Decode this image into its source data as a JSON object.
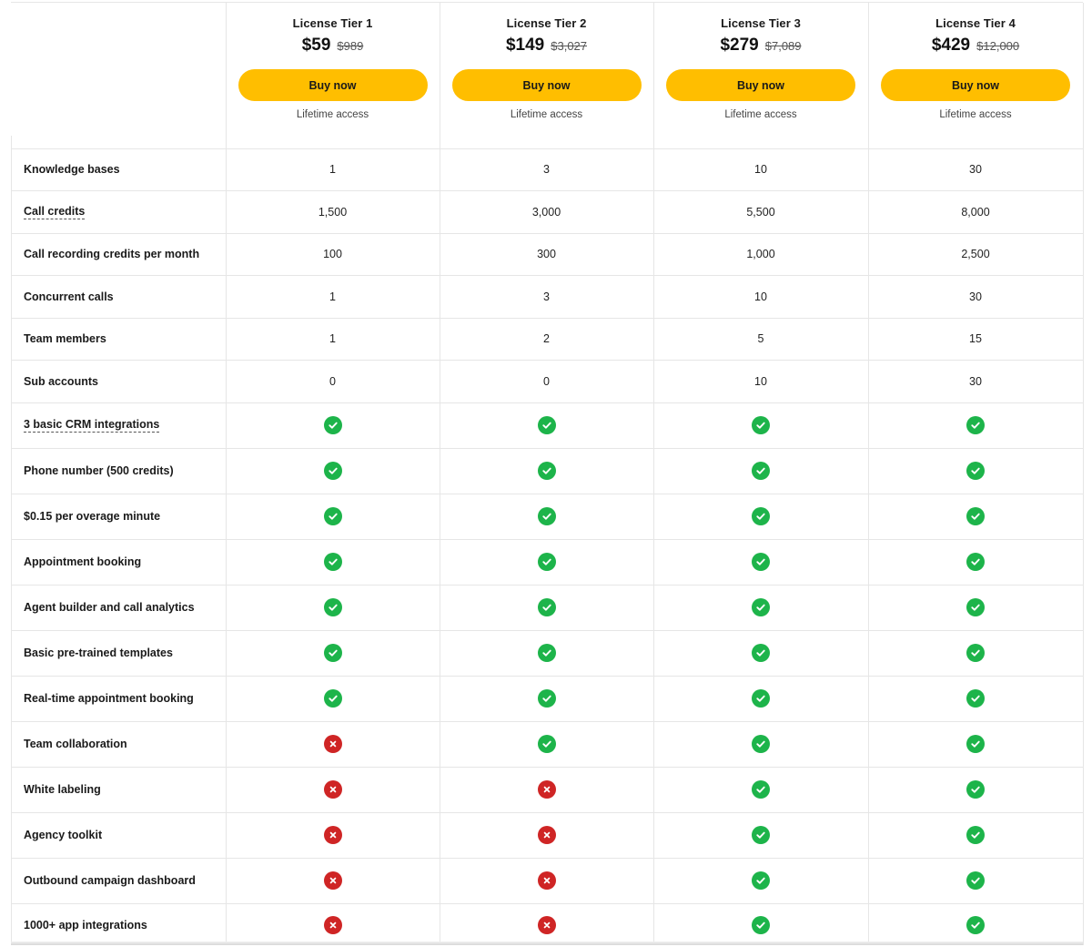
{
  "colors": {
    "accent": "#ffbe00",
    "yes": "#1db44a",
    "no": "#cf2525",
    "border": "#e6e6e6"
  },
  "tiers": [
    {
      "name": "License Tier 1",
      "price": "$59",
      "old_price": "$989",
      "button": "Buy now",
      "access": "Lifetime access"
    },
    {
      "name": "License Tier 2",
      "price": "$149",
      "old_price": "$3,027",
      "button": "Buy now",
      "access": "Lifetime access"
    },
    {
      "name": "License Tier 3",
      "price": "$279",
      "old_price": "$7,089",
      "button": "Buy now",
      "access": "Lifetime access"
    },
    {
      "name": "License Tier 4",
      "price": "$429",
      "old_price": "$12,000",
      "button": "Buy now",
      "access": "Lifetime access"
    }
  ],
  "features": [
    {
      "label": "Knowledge bases",
      "dotted": false,
      "values": [
        "1",
        "3",
        "10",
        "30"
      ]
    },
    {
      "label": "Call credits",
      "dotted": true,
      "values": [
        "1,500",
        "3,000",
        "5,500",
        "8,000"
      ]
    },
    {
      "label": "Call recording credits per month",
      "dotted": false,
      "values": [
        "100",
        "300",
        "1,000",
        "2,500"
      ]
    },
    {
      "label": "Concurrent calls",
      "dotted": false,
      "values": [
        "1",
        "3",
        "10",
        "30"
      ]
    },
    {
      "label": "Team members",
      "dotted": false,
      "values": [
        "1",
        "2",
        "5",
        "15"
      ]
    },
    {
      "label": "Sub accounts",
      "dotted": false,
      "values": [
        "0",
        "0",
        "10",
        "30"
      ]
    },
    {
      "label": "3 basic CRM integrations",
      "dotted": true,
      "values": [
        true,
        true,
        true,
        true
      ]
    },
    {
      "label": "Phone number (500 credits)",
      "dotted": false,
      "values": [
        true,
        true,
        true,
        true
      ]
    },
    {
      "label": "$0.15 per overage minute",
      "dotted": false,
      "values": [
        true,
        true,
        true,
        true
      ]
    },
    {
      "label": "Appointment booking",
      "dotted": false,
      "values": [
        true,
        true,
        true,
        true
      ]
    },
    {
      "label": "Agent builder and call analytics",
      "dotted": false,
      "values": [
        true,
        true,
        true,
        true
      ]
    },
    {
      "label": "Basic pre-trained templates",
      "dotted": false,
      "values": [
        true,
        true,
        true,
        true
      ]
    },
    {
      "label": "Real-time appointment booking",
      "dotted": false,
      "values": [
        true,
        true,
        true,
        true
      ]
    },
    {
      "label": "Team collaboration",
      "dotted": false,
      "values": [
        false,
        true,
        true,
        true
      ]
    },
    {
      "label": "White labeling",
      "dotted": false,
      "values": [
        false,
        false,
        true,
        true
      ]
    },
    {
      "label": "Agency toolkit",
      "dotted": false,
      "values": [
        false,
        false,
        true,
        true
      ]
    },
    {
      "label": "Outbound campaign dashboard",
      "dotted": false,
      "values": [
        false,
        false,
        true,
        true
      ]
    },
    {
      "label": "1000+ app integrations",
      "dotted": false,
      "values": [
        false,
        false,
        true,
        true
      ]
    }
  ]
}
